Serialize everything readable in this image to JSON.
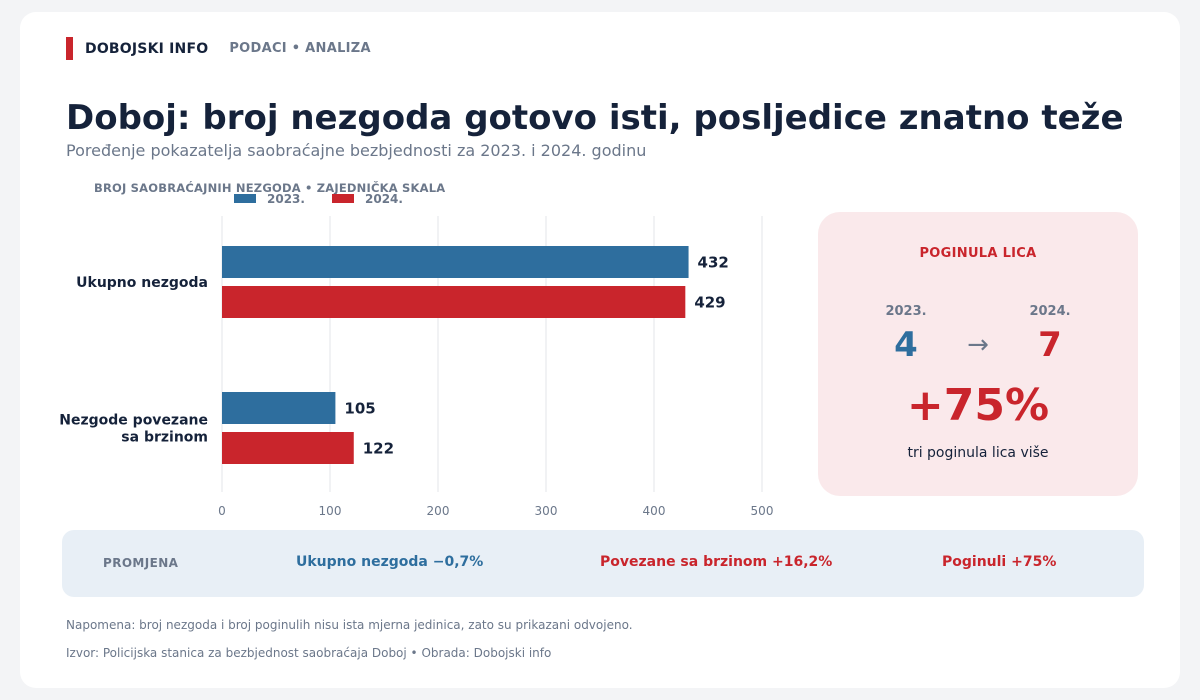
{
  "brand": {
    "name": "DOBOJSKI INFO",
    "tags": "PODACI  •  ANALIZA"
  },
  "title": "Doboj: broj nezgoda gotovo isti, posljedice znatno teže",
  "subtitle": "Poređenje pokazatelja saobraćajne bezbjednosti za 2023. i 2024. godinu",
  "chart_label": "BROJ SAOBRAĆAJNIH NEZGODA  •  ZAJEDNIČKA SKALA",
  "colors": {
    "y2023": "#2e6e9e",
    "y2024": "#c9252c",
    "text": "#15223a",
    "muted": "#6b778a",
    "grid": "#e3e6ea"
  },
  "chart_data": {
    "type": "bar",
    "orientation": "horizontal",
    "categories": [
      "Ukupno nezgoda",
      "Nezgode povezane sa brzinom"
    ],
    "series": [
      {
        "name": "2023.",
        "values": [
          432,
          105
        ]
      },
      {
        "name": "2024.",
        "values": [
          429,
          122
        ]
      }
    ],
    "xlim": [
      0,
      500
    ],
    "xticks": [
      0,
      100,
      200,
      300,
      400,
      500
    ],
    "grid": true,
    "legend": "top-left",
    "data_labels": true
  },
  "panel": {
    "title": "POGINULA LICA",
    "year_a": "2023.",
    "year_b": "2024.",
    "value_a": "4",
    "value_b": "7",
    "arrow": "→",
    "change": "+75%",
    "note": "tri poginula lica više"
  },
  "change_band": {
    "label": "PROMJENA",
    "items": [
      "Ukupno nezgoda  −0,7%",
      "Povezane sa brzinom  +16,2%",
      "Poginuli  +75%"
    ]
  },
  "footer": {
    "note": "Napomena: broj nezgoda i broj poginulih nisu ista mjerna jedinica, zato su prikazani odvojeno.",
    "source": "Izvor: Policijska stanica za bezbjednost saobraćaja Doboj  •  Obrada: Dobojski info"
  }
}
